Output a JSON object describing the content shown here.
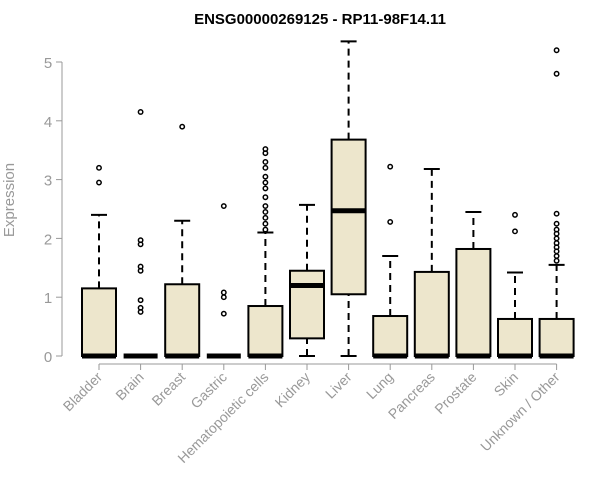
{
  "chart_data": {
    "type": "box",
    "title": "ENSG00000269125 - RP11-98F14.11",
    "xlabel": "",
    "ylabel": "Expression",
    "ylim": [
      0,
      5.4
    ],
    "yticks": [
      0,
      1,
      2,
      3,
      4,
      5
    ],
    "box_fill": "#ede6cc",
    "box_stroke": "#000000",
    "axis_color": "#999999",
    "categories": [
      "Bladder",
      "Brain",
      "Breast",
      "Gastric",
      "Hematopoietic cells",
      "Kidney",
      "Liver",
      "Lung",
      "Pancreas",
      "Prostate",
      "Skin",
      "Unknown / Other"
    ],
    "boxes": [
      {
        "category": "Bladder",
        "min": 0,
        "q1": 0,
        "median": 0,
        "q3": 1.15,
        "max": 2.4,
        "outliers": [
          2.95,
          3.2
        ]
      },
      {
        "category": "Brain",
        "min": 0,
        "q1": 0,
        "median": 0,
        "q3": 0,
        "max": 0,
        "outliers": [
          0.75,
          0.82,
          0.95,
          1.45,
          1.52,
          1.9,
          1.97,
          4.15
        ]
      },
      {
        "category": "Breast",
        "min": 0,
        "q1": 0,
        "median": 0,
        "q3": 1.22,
        "max": 2.3,
        "outliers": [
          3.9
        ]
      },
      {
        "category": "Gastric",
        "min": 0,
        "q1": 0,
        "median": 0,
        "q3": 0,
        "max": 0,
        "outliers": [
          0.72,
          1.0,
          1.08,
          2.55
        ]
      },
      {
        "category": "Hematopoietic cells",
        "min": 0,
        "q1": 0,
        "median": 0,
        "q3": 0.85,
        "max": 2.1,
        "outliers": [
          2.15,
          2.25,
          2.35,
          2.45,
          2.55,
          2.7,
          2.85,
          2.95,
          3.05,
          3.2,
          3.3,
          3.45,
          3.52
        ]
      },
      {
        "category": "Kidney",
        "min": 0,
        "q1": 0.3,
        "median": 1.2,
        "q3": 1.45,
        "max": 2.57,
        "outliers": []
      },
      {
        "category": "Liver",
        "min": 0,
        "q1": 1.05,
        "median": 2.47,
        "q3": 3.68,
        "max": 5.35,
        "outliers": []
      },
      {
        "category": "Lung",
        "min": 0,
        "q1": 0,
        "median": 0,
        "q3": 0.68,
        "max": 1.7,
        "outliers": [
          2.28,
          3.22
        ]
      },
      {
        "category": "Pancreas",
        "min": 0,
        "q1": 0,
        "median": 0,
        "q3": 1.43,
        "max": 3.18,
        "outliers": []
      },
      {
        "category": "Prostate",
        "min": 0,
        "q1": 0,
        "median": 0,
        "q3": 1.82,
        "max": 2.45,
        "outliers": []
      },
      {
        "category": "Skin",
        "min": 0,
        "q1": 0,
        "median": 0,
        "q3": 0.63,
        "max": 1.42,
        "outliers": [
          2.12,
          2.4
        ]
      },
      {
        "category": "Unknown / Other",
        "min": 0,
        "q1": 0,
        "median": 0,
        "q3": 0.63,
        "max": 1.55,
        "outliers": [
          1.62,
          1.7,
          1.78,
          1.85,
          1.92,
          2.0,
          2.08,
          2.15,
          2.25,
          2.42,
          4.8,
          5.2
        ]
      }
    ]
  }
}
